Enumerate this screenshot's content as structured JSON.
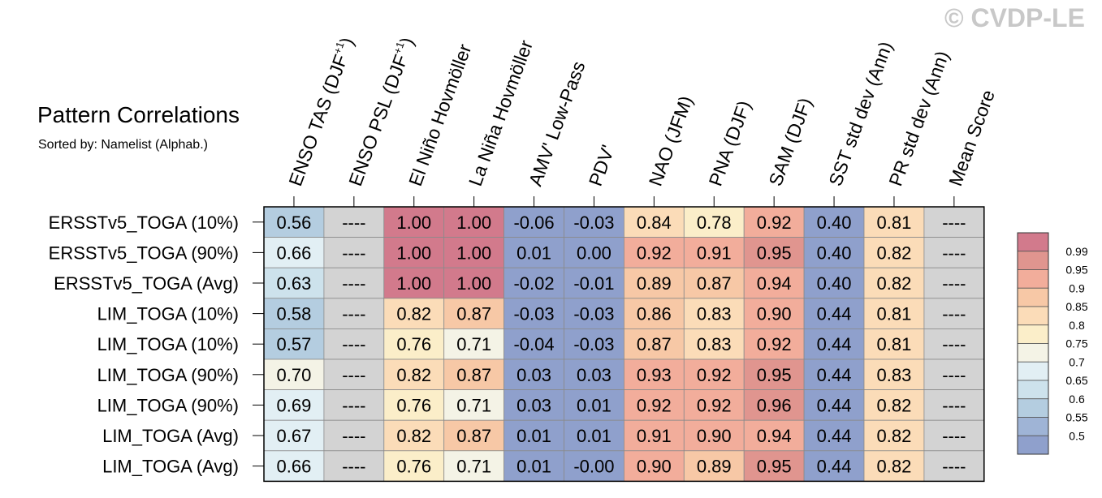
{
  "title": "Pattern Correlations",
  "subtitle": "Sorted by: Namelist (Alphab.)",
  "watermark": "© CVDP-LE",
  "chart_data": {
    "type": "heatmap",
    "columns": [
      "ENSO TAS (DJF+1)",
      "ENSO PSL (DJF+1)",
      "El Niño Hovmöller",
      "La Niña Hovmöller",
      "AMV' Low-Pass",
      "PDV'",
      "NAO (JFM)",
      "PNA (DJF)",
      "SAM (DJF)",
      "SST std dev (Ann)",
      "PR std dev (Ann)",
      "Mean Score"
    ],
    "rows": [
      "ERSSTv5_TOGA (10%)",
      "ERSSTv5_TOGA (90%)",
      "ERSSTv5_TOGA (Avg)",
      "LIM_TOGA (10%)",
      "LIM_TOGA (10%)",
      "LIM_TOGA (90%)",
      "LIM_TOGA (90%)",
      "LIM_TOGA (Avg)",
      "LIM_TOGA (Avg)"
    ],
    "values": [
      [
        "0.56",
        "----",
        "1.00",
        "1.00",
        "-0.06",
        "-0.03",
        "0.84",
        "0.78",
        "0.92",
        "0.40",
        "0.81",
        "----"
      ],
      [
        "0.66",
        "----",
        "1.00",
        "1.00",
        "0.01",
        "0.00",
        "0.92",
        "0.91",
        "0.95",
        "0.40",
        "0.82",
        "----"
      ],
      [
        "0.63",
        "----",
        "1.00",
        "1.00",
        "-0.02",
        "-0.01",
        "0.89",
        "0.87",
        "0.94",
        "0.40",
        "0.82",
        "----"
      ],
      [
        "0.58",
        "----",
        "0.82",
        "0.87",
        "-0.03",
        "-0.03",
        "0.86",
        "0.83",
        "0.90",
        "0.44",
        "0.81",
        "----"
      ],
      [
        "0.57",
        "----",
        "0.76",
        "0.71",
        "-0.04",
        "-0.03",
        "0.87",
        "0.83",
        "0.92",
        "0.44",
        "0.81",
        "----"
      ],
      [
        "0.70",
        "----",
        "0.82",
        "0.87",
        "0.03",
        "0.03",
        "0.93",
        "0.92",
        "0.95",
        "0.44",
        "0.83",
        "----"
      ],
      [
        "0.69",
        "----",
        "0.76",
        "0.71",
        "0.03",
        "0.01",
        "0.92",
        "0.92",
        "0.96",
        "0.44",
        "0.82",
        "----"
      ],
      [
        "0.67",
        "----",
        "0.82",
        "0.87",
        "0.01",
        "0.01",
        "0.91",
        "0.90",
        "0.94",
        "0.44",
        "0.82",
        "----"
      ],
      [
        "0.66",
        "----",
        "0.76",
        "0.71",
        "0.01",
        "-0.00",
        "0.90",
        "0.89",
        "0.95",
        "0.44",
        "0.82",
        "----"
      ]
    ],
    "colorbar": {
      "levels": [
        "0.99",
        "0.95",
        "0.9",
        "0.85",
        "0.8",
        "0.75",
        "0.7",
        "0.65",
        "0.6",
        "0.55",
        "0.5"
      ],
      "colors": [
        "#d27a8c",
        "#e0958f",
        "#f2ad9b",
        "#f7c8a6",
        "#fbdcb8",
        "#fbeec9",
        "#f4f3e6",
        "#e2eff4",
        "#cde2ec",
        "#b4cde0",
        "#9fb4d6",
        "#8fa0cc"
      ],
      "missing_color": "#d3d3d3"
    }
  }
}
